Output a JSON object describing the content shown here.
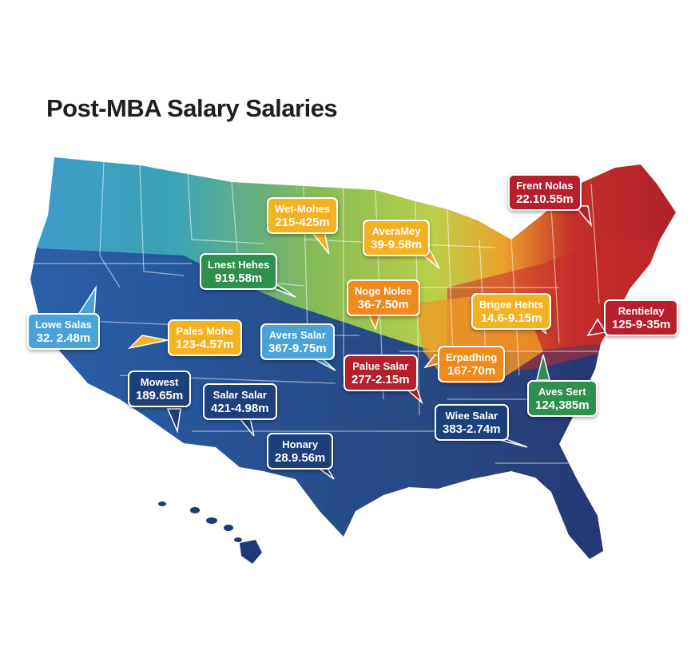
{
  "title": "Post-MBA Salary Salaries",
  "colors": {
    "west_blue": "#2e6fb4",
    "south_navy": "#1f3a7a",
    "teal": "#3a9fb8",
    "green": "#8fbf4f",
    "yellow_green": "#b7cf4a",
    "orange": "#ee9a2a",
    "red": "#b8232a",
    "label_yellow": "#f4b223",
    "label_orange": "#ef8a1e",
    "label_red": "#b5202b",
    "label_green": "#2f8f4e",
    "label_blue": "#4aa3d8",
    "label_navy": "#1d3f7c"
  },
  "labels": [
    {
      "id": "wet-mohes",
      "line1": "Wet-Mohes",
      "line2": "215-425m",
      "color": "#f4b223"
    },
    {
      "id": "averamey",
      "line1": "AveraMey",
      "line2": "39-9.58m",
      "color": "#f4b223"
    },
    {
      "id": "frent-nolas",
      "line1": "Frent Nolas",
      "line2": "22.10.55m",
      "color": "#b5202b"
    },
    {
      "id": "lnest-hehes",
      "line1": "Lnest Hehes",
      "line2": "919.58m",
      "color": "#2f8f4e"
    },
    {
      "id": "noge-nolee",
      "line1": "Noge Nolee",
      "line2": "36-7.50m",
      "color": "#ef8a1e"
    },
    {
      "id": "brigee-hehts",
      "line1": "Brigee Hehts",
      "line2": "14.6-9.15m",
      "color": "#f4b223"
    },
    {
      "id": "rentielay",
      "line1": "Rentielay",
      "line2": "125-9-35m",
      "color": "#b5202b"
    },
    {
      "id": "lowe-salas",
      "line1": "Lowe Salas",
      "line2": "32. 2.48m",
      "color": "#4aa3d8"
    },
    {
      "id": "pales-mohe",
      "line1": "Pales Mohe",
      "line2": "123-4.57m",
      "color": "#f4b223"
    },
    {
      "id": "avers-salar",
      "line1": "Avers Salar",
      "line2": "367-9.75m",
      "color": "#4aa3d8"
    },
    {
      "id": "palue-salar",
      "line1": "Palue Salar",
      "line2": "277-2.15m",
      "color": "#b5202b"
    },
    {
      "id": "erpadhing",
      "line1": "Erpadhing",
      "line2": "167-70m",
      "color": "#ef8a1e"
    },
    {
      "id": "aves-sert",
      "line1": "Aves Sert",
      "line2": "124,385m",
      "color": "#2f8f4e"
    },
    {
      "id": "mowest",
      "line1": "Mowest",
      "line2": "189.65m",
      "color": "#1d3f7c"
    },
    {
      "id": "salar-salar",
      "line1": "Salar Salar",
      "line2": "421-4.98m",
      "color": "#1d3f7c"
    },
    {
      "id": "wiee-salar",
      "line1": "Wiee Salar",
      "line2": "383-2.74m",
      "color": "#1d3f7c"
    },
    {
      "id": "honary",
      "line1": "Honary",
      "line2": "28.9.56m",
      "color": "#1d3f7c"
    }
  ]
}
